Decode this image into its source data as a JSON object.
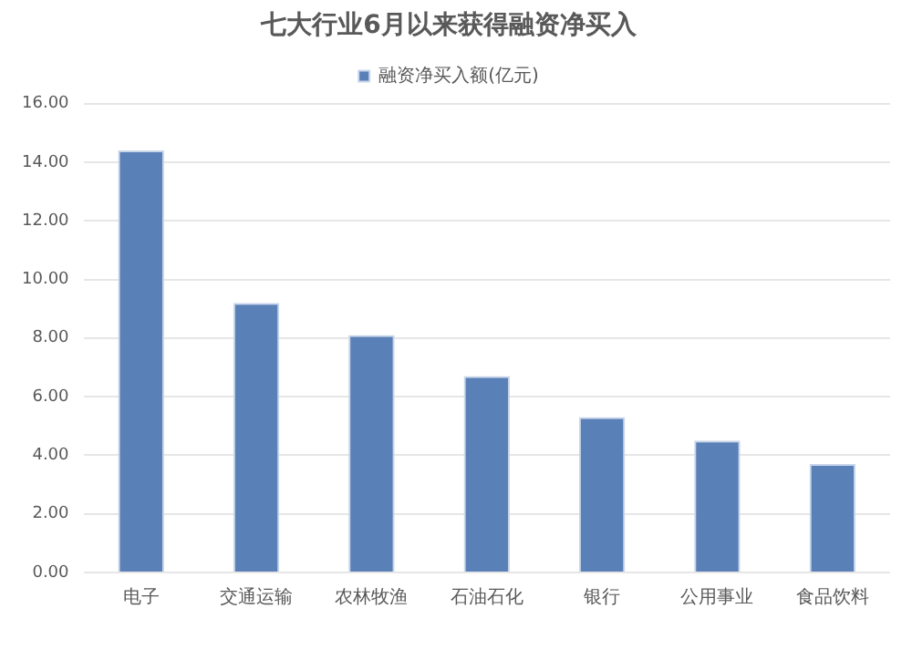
{
  "chart_data": {
    "type": "bar",
    "title": "七大行业6月以来获得融资净买入",
    "categories": [
      "电子",
      "交通运输",
      "农林牧渔",
      "石油石化",
      "银行",
      "公用事业",
      "食品饮料"
    ],
    "series": [
      {
        "name": "融资净买入额(亿元)",
        "color": "#5a80b8",
        "values": [
          14.4,
          9.2,
          8.1,
          6.7,
          5.3,
          4.5,
          3.7
        ]
      }
    ],
    "ylim": [
      0,
      16
    ],
    "yticks": [
      {
        "value": 0,
        "label": "0.00"
      },
      {
        "value": 2,
        "label": "2.00"
      },
      {
        "value": 4,
        "label": "4.00"
      },
      {
        "value": 6,
        "label": "6.00"
      },
      {
        "value": 8,
        "label": "8.00"
      },
      {
        "value": 10,
        "label": "10.00"
      },
      {
        "value": 12,
        "label": "12.00"
      },
      {
        "value": 14,
        "label": "14.00"
      },
      {
        "value": 16,
        "label": "16.00"
      }
    ],
    "grid": "y",
    "legend": "top"
  }
}
